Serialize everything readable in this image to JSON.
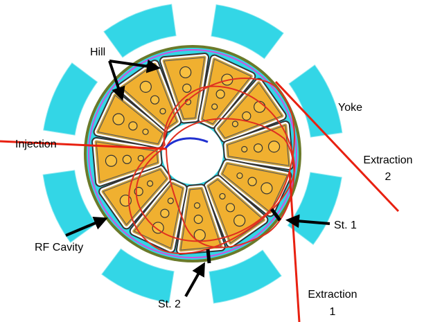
{
  "labels": {
    "hill": "Hill",
    "yoke": "Yoke",
    "injection": "Injection",
    "extraction2": [
      "Extraction",
      "2"
    ],
    "extraction1": [
      "Extraction",
      "1"
    ],
    "st1": "St. 1",
    "st2": "St. 2",
    "rf_cavity": "RF Cavity"
  }
}
